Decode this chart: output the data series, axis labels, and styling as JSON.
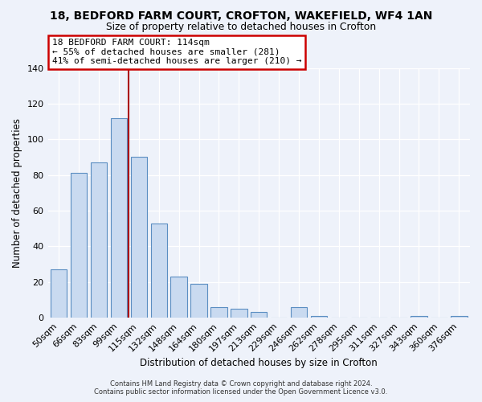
{
  "title1": "18, BEDFORD FARM COURT, CROFTON, WAKEFIELD, WF4 1AN",
  "title2": "Size of property relative to detached houses in Crofton",
  "xlabel": "Distribution of detached houses by size in Crofton",
  "ylabel": "Number of detached properties",
  "bar_labels": [
    "50sqm",
    "66sqm",
    "83sqm",
    "99sqm",
    "115sqm",
    "132sqm",
    "148sqm",
    "164sqm",
    "180sqm",
    "197sqm",
    "213sqm",
    "229sqm",
    "246sqm",
    "262sqm",
    "278sqm",
    "295sqm",
    "311sqm",
    "327sqm",
    "343sqm",
    "360sqm",
    "376sqm"
  ],
  "bar_values": [
    27,
    81,
    87,
    112,
    90,
    53,
    23,
    19,
    6,
    5,
    3,
    0,
    6,
    1,
    0,
    0,
    0,
    0,
    1,
    0,
    1
  ],
  "bar_color": "#c9daf0",
  "bar_edge_color": "#5b8ec2",
  "vline_color": "#aa0000",
  "annotation_title": "18 BEDFORD FARM COURT: 114sqm",
  "annotation_line1": "← 55% of detached houses are smaller (281)",
  "annotation_line2": "41% of semi-detached houses are larger (210) →",
  "annotation_box_facecolor": "#ffffff",
  "annotation_box_edgecolor": "#cc0000",
  "ylim": [
    0,
    140
  ],
  "yticks": [
    0,
    20,
    40,
    60,
    80,
    100,
    120,
    140
  ],
  "footer1": "Contains HM Land Registry data © Crown copyright and database right 2024.",
  "footer2": "Contains public sector information licensed under the Open Government Licence v3.0.",
  "bg_color": "#eef2fa",
  "grid_color": "#ffffff"
}
